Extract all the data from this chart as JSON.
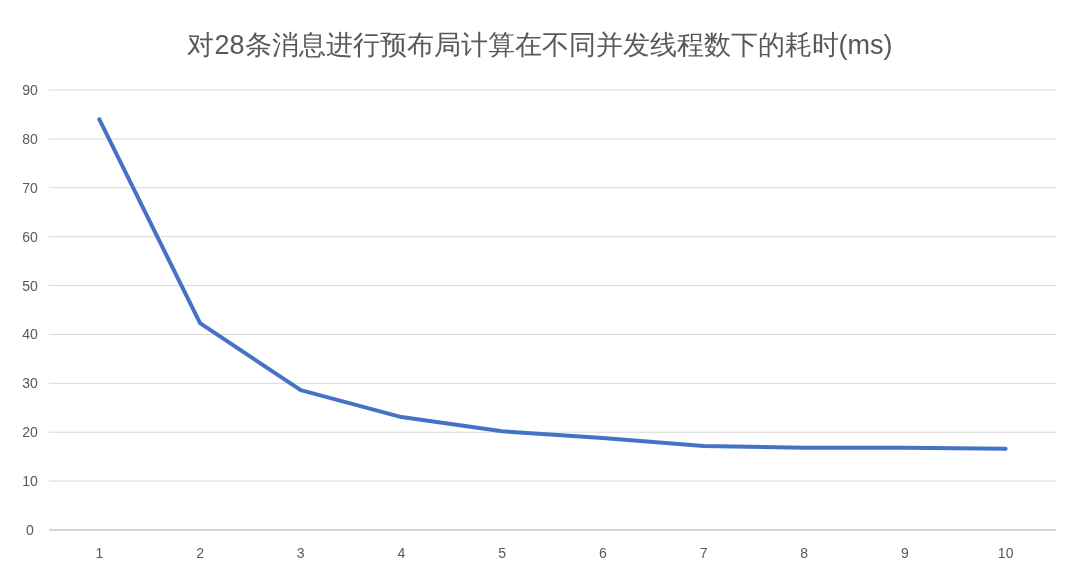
{
  "chart_data": {
    "type": "line",
    "title": "对28条消息进行预布局计算在不同并发线程数下的耗时(ms)",
    "categories": [
      "1",
      "2",
      "3",
      "4",
      "5",
      "6",
      "7",
      "8",
      "9",
      "10"
    ],
    "series": [
      {
        "color": "#4472c4",
        "values": [
          84.0,
          42.3,
          28.6,
          23.1,
          20.2,
          18.8,
          17.2,
          16.8,
          16.8,
          16.6
        ]
      }
    ],
    "ylim": [
      0,
      90
    ],
    "yticks": [
      0,
      10,
      20,
      30,
      40,
      50,
      60,
      70,
      80,
      90
    ],
    "grid": "y",
    "marker": "none",
    "line_style": "solid"
  }
}
